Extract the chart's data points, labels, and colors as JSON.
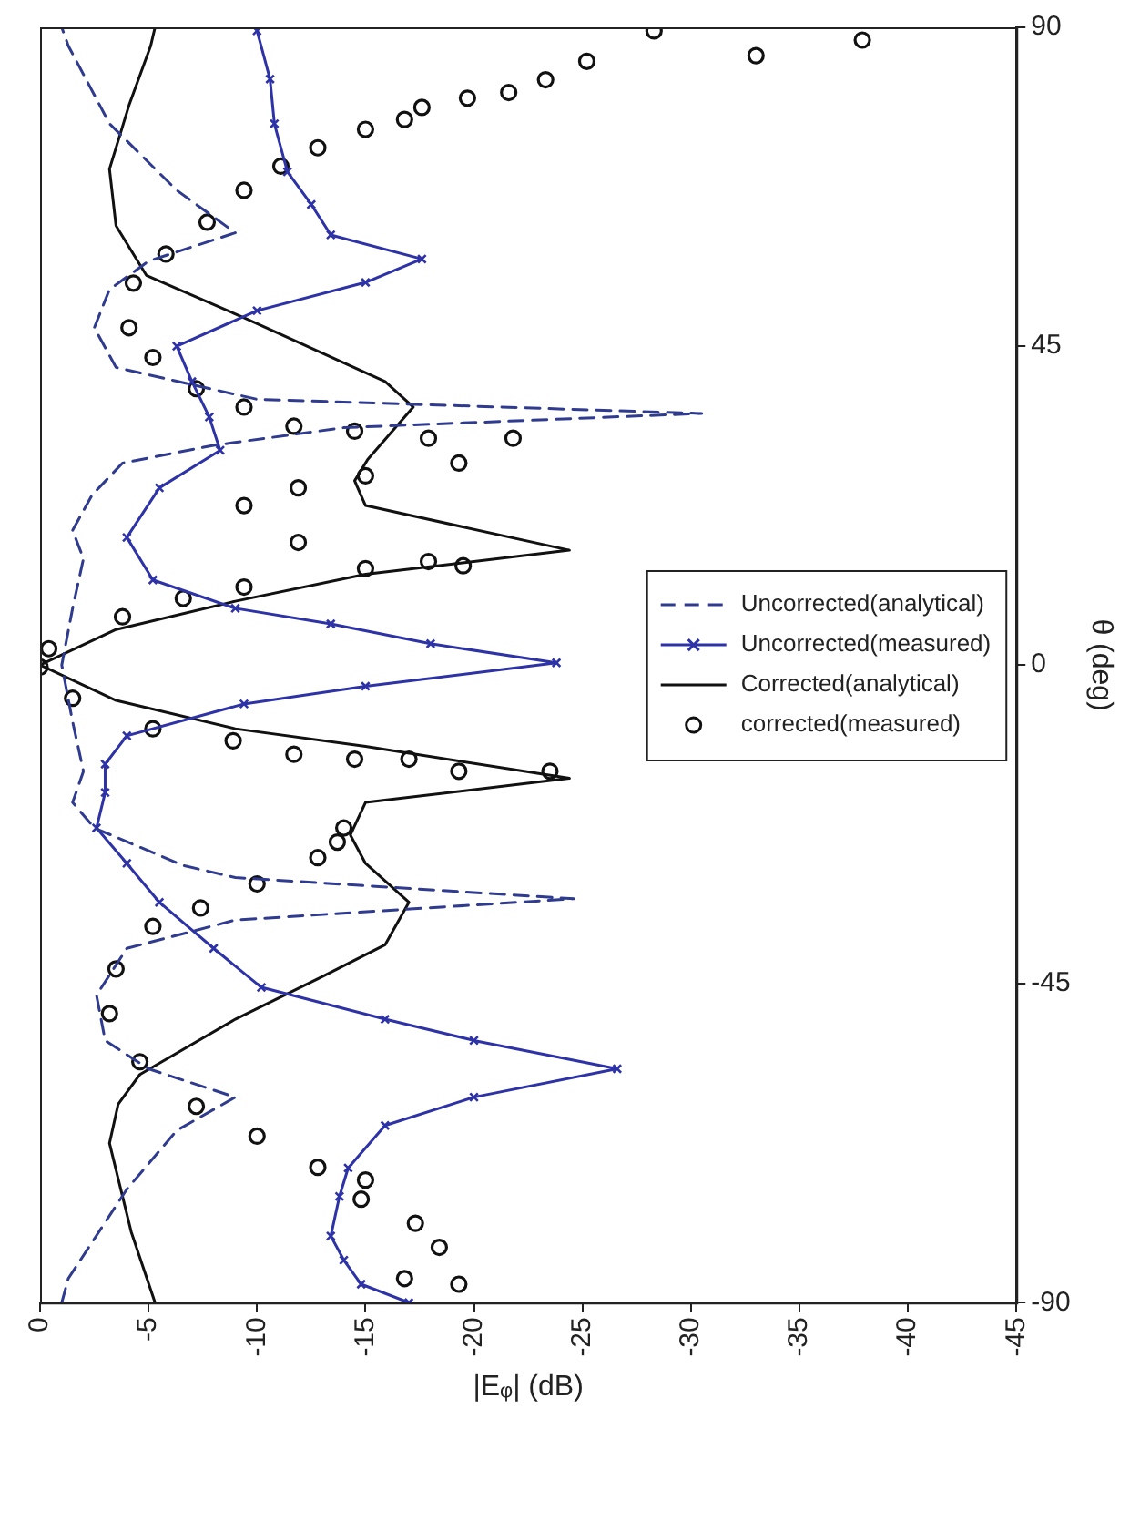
{
  "chart_data": {
    "type": "line",
    "orientation": "horizontal",
    "xlabel": "|Eᵩ| (dB)",
    "ylabel": "θ (deg)",
    "xlim": [
      0,
      -45
    ],
    "xticks": [
      0,
      -5,
      -10,
      -15,
      -20,
      -25,
      -30,
      -35,
      -40,
      -45
    ],
    "ylim": [
      -90,
      90
    ],
    "yticks": [
      -90,
      -45,
      0,
      45,
      90
    ],
    "grid": false,
    "legend": "right",
    "series": [
      {
        "name": "Uncorrected(analytical)",
        "color": "#2f3b8f",
        "type": "line",
        "line_style": "dashed",
        "marker": "none",
        "x": [
          -90,
          -86.6,
          -74,
          -65.7,
          -61,
          -57,
          -53,
          -46.6,
          -40,
          -36,
          -33,
          -30,
          -28.3,
          -23,
          -19.4,
          -15,
          -8,
          0,
          8,
          15,
          19,
          24,
          28.5,
          31,
          33.5,
          35.5,
          37.5,
          42,
          47.6,
          53,
          57,
          61,
          67,
          76.4,
          87.4,
          90
        ],
        "values": [
          -1,
          -1.3,
          -4,
          -6.3,
          -9,
          -5,
          -3,
          -2.6,
          -4,
          -9,
          -24.6,
          -9,
          -6.6,
          -2.5,
          -1.5,
          -2,
          -1.5,
          -1,
          -1.5,
          -2,
          -1.5,
          -2.4,
          -3.8,
          -8,
          -14,
          -30.5,
          -10,
          -3.5,
          -2.5,
          -3.2,
          -5,
          -9,
          -6.3,
          -3.2,
          -1.3,
          -1
        ]
      },
      {
        "name": "Uncorrected(measured)",
        "color": "#2d33a6",
        "type": "line",
        "line_style": "solid",
        "marker": "cross",
        "x": [
          -90,
          -87.4,
          -84,
          -80.6,
          -75,
          -71,
          -65,
          -61,
          -57,
          -53,
          -50,
          -45.5,
          -40,
          -33.5,
          -28,
          -23,
          -18,
          -14,
          -10,
          -5.5,
          -3,
          0.3,
          3,
          5.8,
          8,
          12,
          18,
          25,
          30.3,
          35,
          40,
          45,
          50,
          54,
          57.3,
          60.7,
          65,
          69.6,
          76.4,
          82.7,
          89.5
        ],
        "values": [
          -17,
          -14.8,
          -14,
          -13.4,
          -13.8,
          -14.2,
          -15.9,
          -20,
          -26.6,
          -20,
          -15.9,
          -10.2,
          -8,
          -5.5,
          -4,
          -2.6,
          -3,
          -3,
          -4,
          -9.4,
          -15,
          -23.8,
          -18,
          -13.4,
          -9,
          -5.2,
          -4,
          -5.5,
          -8.3,
          -7.8,
          -7,
          -6.3,
          -10,
          -15,
          -17.6,
          -13.4,
          -12.5,
          -11.4,
          -10.8,
          -10.6,
          -10
        ]
      },
      {
        "name": "Corrected(analytical)",
        "color": "#111111",
        "type": "line",
        "line_style": "solid",
        "marker": "none",
        "x": [
          -90,
          -80,
          -67.5,
          -62,
          -57.8,
          -50,
          -44,
          -39.5,
          -33.5,
          -28,
          -24,
          -19.4,
          -16,
          -11.5,
          -9,
          -5,
          0,
          5,
          9,
          12.8,
          16.2,
          22.5,
          26,
          29,
          36.4,
          40,
          49,
          55,
          62,
          70,
          79,
          87.4,
          90
        ],
        "values": [
          -5.3,
          -4.2,
          -3.2,
          -3.6,
          -4.6,
          -9,
          -13,
          -15.9,
          -17,
          -15,
          -14.3,
          -15,
          -24.4,
          -15,
          -9,
          -3.5,
          0,
          -3.5,
          -9,
          -15,
          -24.4,
          -15,
          -14.5,
          -15.1,
          -17.2,
          -15.9,
          -9.4,
          -4.9,
          -3.5,
          -3.2,
          -4.1,
          -5.1,
          -5.3
        ]
      },
      {
        "name": "corrected(measured)",
        "color": "#111111",
        "type": "scatter",
        "marker": "circle",
        "x": [
          -87.4,
          -86.6,
          -82.2,
          -78.8,
          -75.4,
          -72.7,
          -70.9,
          -66.5,
          -62.3,
          -56,
          -49.2,
          -42.9,
          -36.9,
          -34.3,
          -30.9,
          -27.2,
          -25,
          -23,
          -15,
          -15,
          -13.3,
          -13.3,
          -12.6,
          -10.7,
          -9,
          -4.7,
          -0.3,
          2.3,
          6.8,
          9.4,
          11,
          13.6,
          14,
          14.6,
          17.3,
          22.5,
          25,
          26.7,
          28.5,
          32,
          32,
          33,
          33.7,
          36.4,
          39,
          43.4,
          47.6,
          53.9,
          58,
          62.5,
          67,
          70.4,
          73,
          75.6,
          77,
          78.7,
          80,
          80.8,
          82.6,
          85.2,
          86,
          88.2,
          89.5
        ],
        "values": [
          -19.3,
          -16.8,
          -18.4,
          -17.3,
          -14.8,
          -15,
          -12.8,
          -10,
          -7.2,
          -4.6,
          -3.2,
          -3.5,
          -5.2,
          -7.4,
          -10,
          -12.8,
          -13.7,
          -14,
          -23.5,
          -19.3,
          -17,
          -14.5,
          -11.7,
          -8.9,
          -5.2,
          -1.5,
          0,
          -0.4,
          -3.8,
          -6.6,
          -9.4,
          -15,
          -19.5,
          -17.9,
          -11.9,
          -9.4,
          -11.9,
          -15,
          -19.3,
          -17.9,
          -21.8,
          -14.5,
          -11.7,
          -9.4,
          -7.2,
          -5.2,
          -4.1,
          -4.3,
          -5.8,
          -7.7,
          -9.4,
          -11.1,
          -12.8,
          -15,
          -16.8,
          -17.6,
          -19.7,
          -21.6,
          -23.3,
          -25.2,
          -33,
          -37.9,
          -28.3
        ]
      }
    ]
  }
}
